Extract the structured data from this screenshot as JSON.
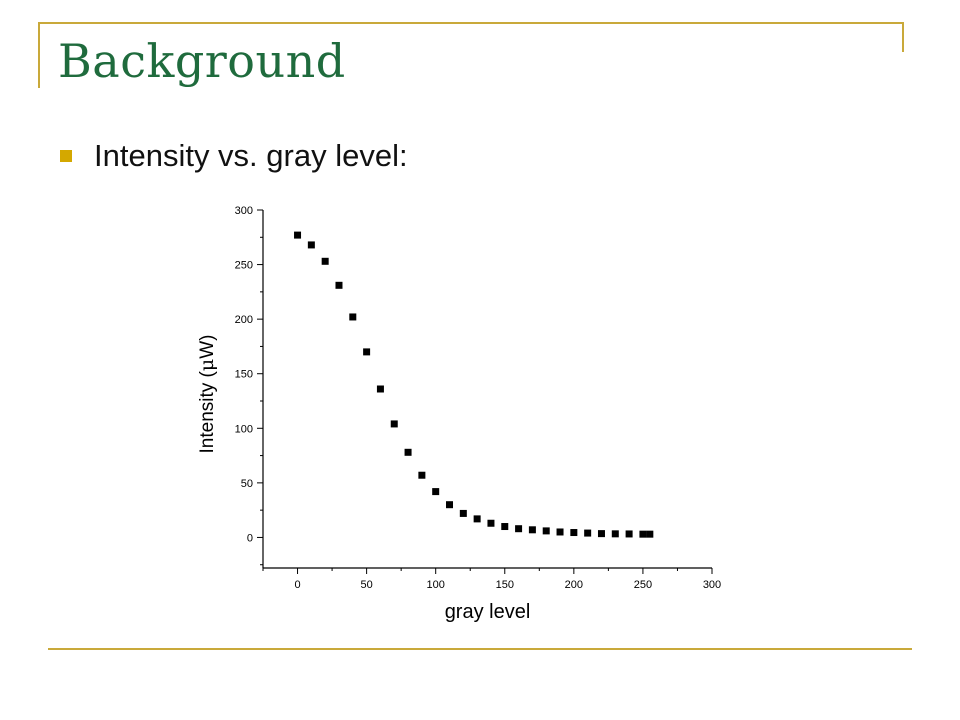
{
  "slide": {
    "title": "Background",
    "bullet": "Intensity vs. gray level:"
  },
  "colors": {
    "title": "#1f6b3d",
    "accent": "#c9a93a",
    "bullet": "#d4a800",
    "markers": "#000000"
  },
  "chart_data": {
    "type": "scatter",
    "title": "",
    "xlabel": "gray level",
    "ylabel_prefix": "Intensity (",
    "ylabel_mu": "μ",
    "ylabel_suffix": "W)",
    "xlim": [
      -25,
      300
    ],
    "ylim": [
      -28,
      300
    ],
    "xticks": [
      0,
      50,
      100,
      150,
      200,
      250,
      300
    ],
    "yticks": [
      0,
      50,
      100,
      150,
      200,
      250,
      300
    ],
    "grid": false,
    "marker": "square",
    "series": [
      {
        "x": [
          0,
          10,
          20,
          30,
          40,
          50,
          60,
          70,
          80,
          90,
          100,
          110,
          120,
          130,
          140,
          150,
          160,
          170,
          180,
          190,
          200,
          210,
          220,
          230,
          240,
          250,
          255
        ],
        "y": [
          277,
          268,
          253,
          231,
          202,
          170,
          136,
          104,
          78,
          57,
          42,
          30,
          22,
          17,
          13,
          10,
          8,
          7,
          6,
          5,
          4.5,
          4,
          3.5,
          3.3,
          3.2,
          3,
          3
        ]
      }
    ]
  }
}
